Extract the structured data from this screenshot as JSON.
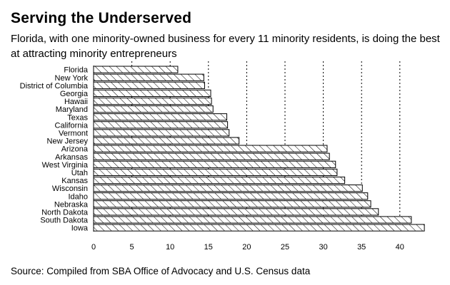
{
  "title": "Serving the Underserved",
  "subtitle": "Florida, with one minority-owned business for every 11 minority residents, is doing the best at attracting minority entrepreneurs",
  "source": "Source: Compiled from SBA Office of Advocacy and U.S. Census data",
  "chart_data": {
    "type": "bar",
    "orientation": "horizontal",
    "categories": [
      "Florida",
      "New York",
      "District of Columbia",
      "Georgia",
      "Hawaii",
      "Maryland",
      "Texas",
      "California",
      "Vermont",
      "New Jersey",
      "Arizona",
      "Arkansas",
      "West Virginia",
      "Utah",
      "Kansas",
      "Wisconsin",
      "Idaho",
      "Nebraska",
      "North Dakota",
      "South Dakota",
      "Iowa"
    ],
    "values": [
      11.0,
      14.4,
      14.5,
      15.3,
      15.4,
      15.6,
      17.4,
      17.5,
      17.7,
      19.0,
      30.5,
      30.8,
      31.6,
      31.8,
      32.8,
      35.1,
      35.8,
      36.2,
      37.2,
      41.5,
      43.2
    ],
    "xlim": [
      0,
      44
    ],
    "xticks": [
      "0",
      "5",
      "10",
      "15",
      "20",
      "25",
      "30",
      "35",
      "40"
    ],
    "grid": "vertical dotted",
    "bar_fill": "diagonal hatch",
    "colors": {
      "bar_stroke": "#000000",
      "hatch": "#000000",
      "grid": "#000000",
      "background": "#ffffff"
    }
  }
}
